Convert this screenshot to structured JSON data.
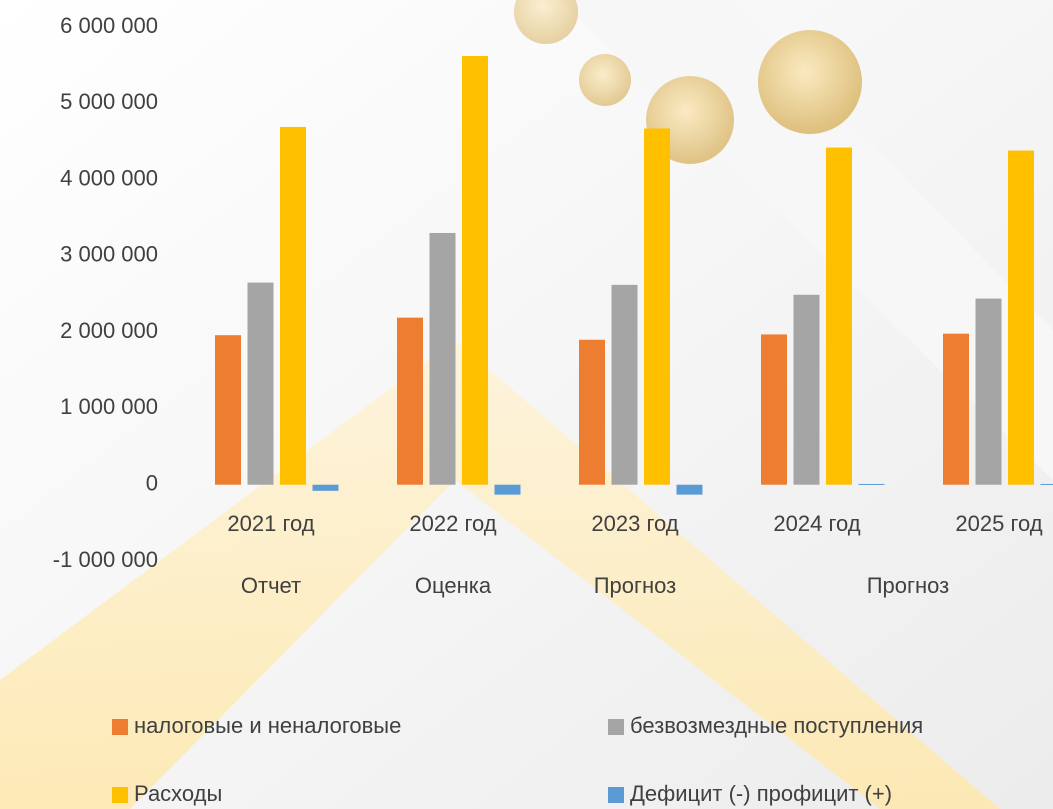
{
  "chart_data": {
    "type": "bar",
    "categories": [
      "2021 год",
      "2022 год",
      "2023 год",
      "2024 год",
      "2025 год"
    ],
    "category_groups": [
      {
        "label": "Отчет",
        "categories": [
          "2021 год"
        ]
      },
      {
        "label": "Оценка",
        "categories": [
          "2022 год"
        ]
      },
      {
        "label": "Прогноз",
        "categories": [
          "2023 год"
        ]
      },
      {
        "label": "Прогноз",
        "categories": [
          "2024 год",
          "2025 год"
        ]
      }
    ],
    "series": [
      {
        "name": "налоговые и неналоговые",
        "color": "#ed7d31",
        "values": [
          1960000,
          2190000,
          1900000,
          1970000,
          1980000
        ]
      },
      {
        "name": "безвозмездные поступления",
        "color": "#a5a5a5",
        "values": [
          2650000,
          3300000,
          2620000,
          2490000,
          2440000
        ]
      },
      {
        "name": "Расходы",
        "color": "#ffc000",
        "values": [
          4690000,
          5620000,
          4670000,
          4420000,
          4380000
        ]
      },
      {
        "name": "Дефицит (-) профицит (+)",
        "color": "#5b9bd5",
        "values": [
          -80000,
          -130000,
          -130000,
          10000,
          10000
        ]
      }
    ],
    "ylim": [
      -1000000,
      6000000
    ],
    "yticks": [
      {
        "value": -1000000,
        "label": "-1 000 000"
      },
      0,
      {
        "value": 1000000,
        "label": "1 000 000"
      },
      {
        "value": 2000000,
        "label": "2 000 000"
      },
      {
        "value": 3000000,
        "label": "3 000 000"
      },
      {
        "value": 4000000,
        "label": "4 000 000"
      },
      {
        "value": 5000000,
        "label": "5 000 000"
      },
      {
        "value": 6000000,
        "label": "6 000 000"
      }
    ],
    "grid": false
  }
}
